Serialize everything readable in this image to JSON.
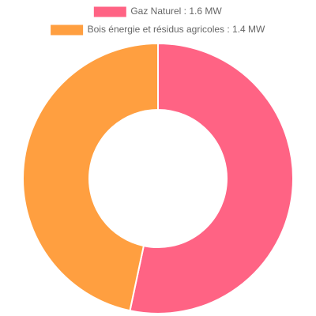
{
  "chart_data": {
    "type": "doughnut",
    "categories": [
      "Gaz Naturel : 1.6 MW",
      "Bois énergie et résidus agricoles : 1.4 MW"
    ],
    "values": [
      1.6,
      1.4
    ],
    "colors": [
      "#ff6384",
      "#ff9f40"
    ],
    "legend": "top"
  }
}
